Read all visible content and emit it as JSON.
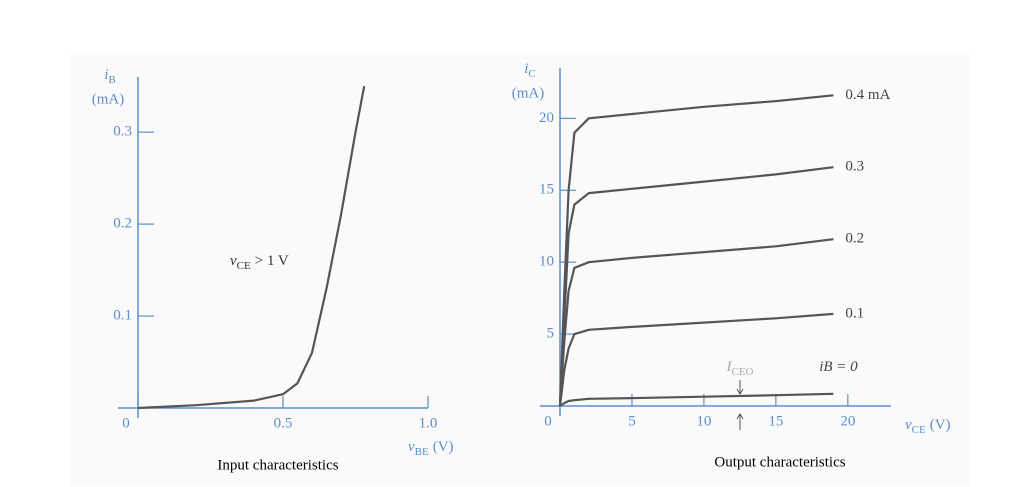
{
  "chart_data": [
    {
      "type": "line",
      "caption": "Input characteristics",
      "ylabel": "i",
      "ylabel_sub": "B",
      "ylabel_unit": "(mA)",
      "xlabel": "v",
      "xlabel_sub": "BE",
      "xlabel_unit": "(V)",
      "annotation": {
        "symbol": "v",
        "sub": "CE",
        "text": "> 1 V"
      },
      "x": [
        0,
        0.2,
        0.4,
        0.5,
        0.55,
        0.6,
        0.65,
        0.7,
        0.75,
        0.78
      ],
      "series": [
        {
          "name": null,
          "color": "#555555",
          "values": [
            0,
            0.003,
            0.008,
            0.015,
            0.027,
            0.06,
            0.13,
            0.21,
            0.3,
            0.35
          ]
        }
      ],
      "xlim": [
        0,
        1
      ],
      "ylim": [
        0,
        0.36
      ],
      "xticks": [
        0,
        0.5,
        {
          "value": 1,
          "label": "1.0"
        }
      ],
      "yticks": [
        0.1,
        0.2,
        0.3
      ]
    },
    {
      "type": "line",
      "caption": "Output characteristics",
      "ylabel": "i",
      "ylabel_sub": "C",
      "ylabel_unit": "(mA)",
      "xlabel": "v",
      "xlabel_sub": "CE",
      "xlabel_unit": "(V)",
      "annotation": {
        "symbol": "I",
        "sub": "CEO"
      },
      "x": [
        0,
        0.3,
        0.6,
        1,
        2,
        5,
        10,
        15,
        19
      ],
      "series": [
        {
          "name": "0.4 mA",
          "color": "#555555",
          "values": [
            0,
            8,
            15,
            19,
            20,
            20.3,
            20.8,
            21.2,
            21.6
          ]
        },
        {
          "name": "0.3",
          "color": "#555555",
          "values": [
            0,
            6,
            12,
            14,
            14.8,
            15.1,
            15.6,
            16.1,
            16.6
          ]
        },
        {
          "name": "0.2",
          "color": "#555555",
          "values": [
            0,
            4.5,
            8,
            9.6,
            10,
            10.3,
            10.7,
            11.1,
            11.6
          ]
        },
        {
          "name": "0.1",
          "color": "#555555",
          "values": [
            0,
            2.5,
            4,
            5,
            5.3,
            5.5,
            5.8,
            6.1,
            6.4
          ]
        },
        {
          "name": "iB = 0",
          "color": "#555555",
          "values": [
            0,
            0.2,
            0.35,
            0.4,
            0.5,
            0.55,
            0.65,
            0.75,
            0.85
          ]
        }
      ],
      "xlim": [
        0,
        23
      ],
      "ylim": [
        0,
        23.5
      ],
      "xticks": [
        0,
        5,
        10,
        15,
        20
      ],
      "yticks": [
        5,
        10,
        15,
        20
      ]
    }
  ]
}
